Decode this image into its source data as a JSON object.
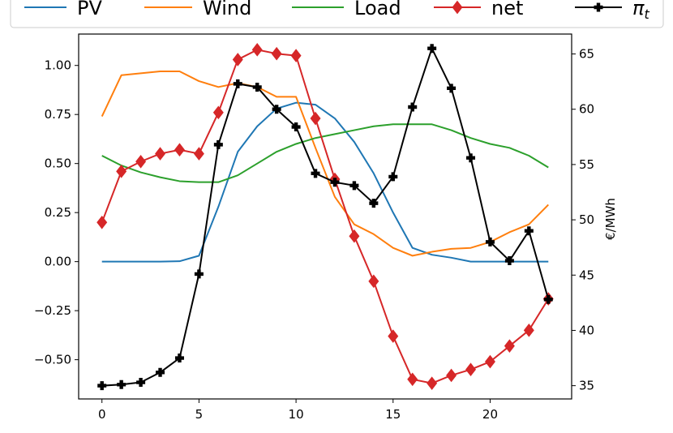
{
  "chart_data": {
    "type": "line",
    "ylabel_right": "€/MWh",
    "x": [
      0,
      1,
      2,
      3,
      4,
      5,
      6,
      7,
      8,
      9,
      10,
      11,
      12,
      13,
      14,
      15,
      16,
      17,
      18,
      19,
      20,
      21,
      22,
      23
    ],
    "xticks": [
      0,
      5,
      10,
      15,
      20
    ],
    "xlim": [
      -1.2,
      24.2
    ],
    "ylim_left": [
      -0.7,
      1.16
    ],
    "yticks_left": [
      -0.5,
      -0.25,
      0.0,
      0.25,
      0.5,
      0.75,
      1.0
    ],
    "ytick_labels_left": [
      "−0.50",
      "−0.25",
      "0.00",
      "0.25",
      "0.50",
      "0.75",
      "1.00"
    ],
    "ylim_right": [
      33.8,
      66.8
    ],
    "yticks_right": [
      35,
      40,
      45,
      50,
      55,
      60,
      65
    ],
    "ytick_labels_right": [
      "35",
      "40",
      "45",
      "50",
      "55",
      "60",
      "65"
    ],
    "legend_position": "top",
    "series": [
      {
        "name": "PV",
        "axis": "left",
        "color": "#1f77b4",
        "marker": "none",
        "values": [
          0.0,
          0.0,
          0.0,
          0.0,
          0.002,
          0.03,
          0.28,
          0.56,
          0.69,
          0.78,
          0.81,
          0.8,
          0.73,
          0.61,
          0.45,
          0.25,
          0.07,
          0.035,
          0.02,
          0.0,
          0.0,
          0.0,
          0.0,
          0.0
        ]
      },
      {
        "name": "Wind",
        "axis": "left",
        "color": "#ff7f0e",
        "marker": "none",
        "values": [
          0.74,
          0.95,
          0.96,
          0.97,
          0.97,
          0.92,
          0.89,
          0.91,
          0.89,
          0.84,
          0.84,
          0.58,
          0.33,
          0.19,
          0.14,
          0.07,
          0.03,
          0.05,
          0.065,
          0.07,
          0.1,
          0.15,
          0.19,
          0.29
        ]
      },
      {
        "name": "Load",
        "axis": "left",
        "color": "#2ca02c",
        "marker": "none",
        "values": [
          0.54,
          0.49,
          0.455,
          0.43,
          0.41,
          0.405,
          0.405,
          0.44,
          0.5,
          0.56,
          0.6,
          0.63,
          0.65,
          0.67,
          0.69,
          0.7,
          0.7,
          0.7,
          0.67,
          0.63,
          0.6,
          0.58,
          0.54,
          0.48
        ]
      },
      {
        "name": "net",
        "axis": "left",
        "color": "#d62728",
        "marker": "diamond",
        "values": [
          0.2,
          0.46,
          0.51,
          0.55,
          0.57,
          0.55,
          0.76,
          1.03,
          1.08,
          1.06,
          1.05,
          0.73,
          0.42,
          0.13,
          -0.1,
          -0.38,
          -0.6,
          -0.62,
          -0.58,
          -0.55,
          -0.51,
          -0.43,
          -0.35,
          -0.19
        ]
      },
      {
        "name": "π_t",
        "axis": "right",
        "color": "#000000",
        "marker": "plus",
        "values": [
          35.0,
          35.1,
          35.3,
          36.2,
          37.5,
          45.1,
          56.8,
          62.3,
          62.0,
          60.0,
          58.4,
          54.2,
          53.4,
          53.1,
          51.5,
          53.9,
          60.2,
          65.5,
          61.9,
          55.6,
          48.0,
          46.3,
          49.0,
          42.8
        ]
      }
    ]
  }
}
